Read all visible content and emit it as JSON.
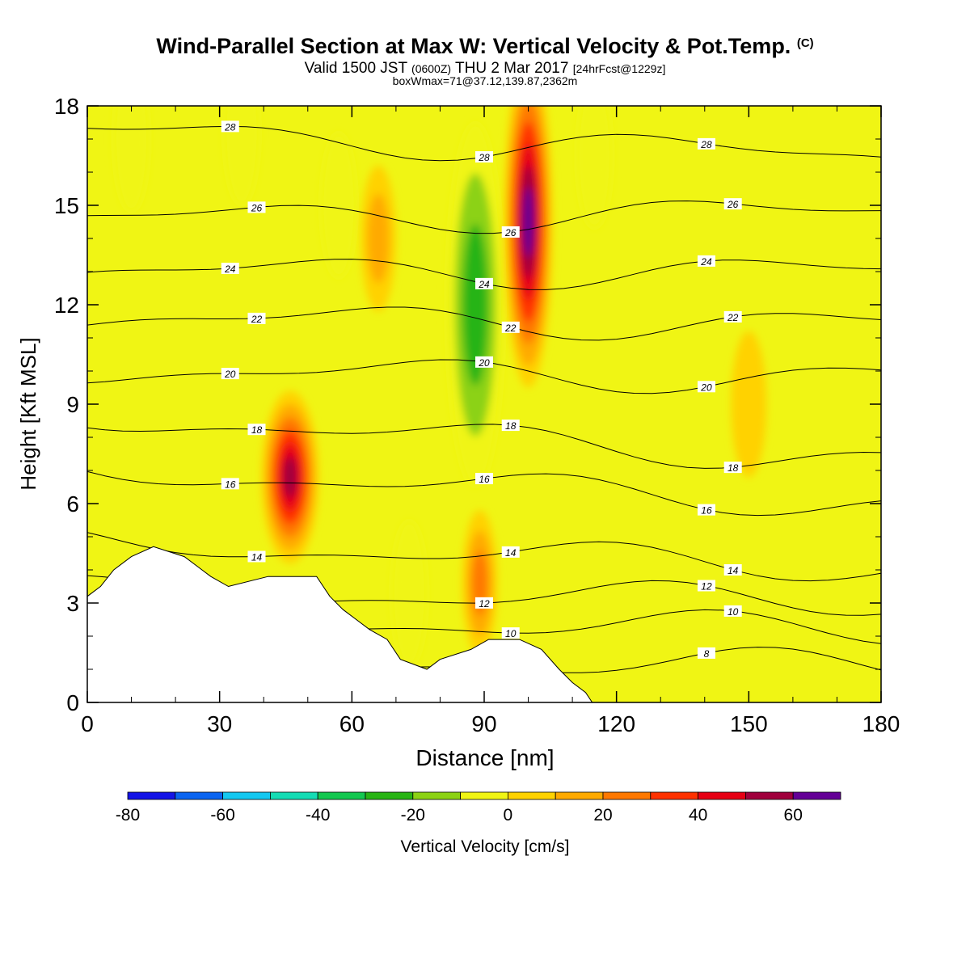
{
  "title": {
    "main": "Wind-Parallel Section at Max W: Vertical Velocity & Pot.Temp.",
    "copyright": "(C)",
    "valid_prefix": "Valid 1500 JST",
    "utc": "(0600Z)",
    "date": "THU 2 Mar 2017",
    "forecast": "[24hrFcst@1229z]",
    "box_info": "boxWmax=71@37.12,139.87,2362m"
  },
  "chart_data": {
    "type": "heatmap",
    "subtype": "vertical cross-section: filled contours of vertical velocity with potential temperature line contours",
    "xlabel": "Distance [nm]",
    "ylabel": "Height [Kft MSL]",
    "xlim": [
      0,
      180
    ],
    "ylim": [
      0,
      18
    ],
    "x_ticks": [
      "0",
      "30",
      "60",
      "90",
      "120",
      "150",
      "180"
    ],
    "y_ticks": [
      "0",
      "3",
      "6",
      "9",
      "12",
      "15",
      "18"
    ],
    "colorbar": {
      "label": "Vertical Velocity [cm/s]",
      "ticks": [
        "-80",
        "-60",
        "-40",
        "-20",
        "0",
        "20",
        "40",
        "60"
      ],
      "levels": [
        -80,
        -70,
        -60,
        -50,
        -40,
        -30,
        -20,
        -10,
        0,
        10,
        20,
        30,
        40,
        50,
        60,
        70
      ],
      "colors": [
        "#1414e6",
        "#0a64f0",
        "#14c8f0",
        "#14dcb4",
        "#14c850",
        "#28b414",
        "#8cd214",
        "#f0f514",
        "#ffd200",
        "#ffaa00",
        "#ff7800",
        "#ff3200",
        "#e60014",
        "#a0003c",
        "#640096"
      ]
    },
    "background_color": "#f0f514",
    "w_regions": [
      {
        "kind": "updraft",
        "x_center": 46,
        "height_center": 6.8,
        "w_max": 60,
        "note": "lee-side updraft core 43-53 nm, 4-8.5 kft"
      },
      {
        "kind": "downdraft",
        "x_center": 88,
        "height_center": 12,
        "w_min": -30,
        "note": "deep downdraft column 80-95 nm, 8-18 kft"
      },
      {
        "kind": "updraft",
        "x_center": 100,
        "height_center": 14.5,
        "w_max": 71,
        "note": "strongest updraft column 96-104 nm, 9-18 kft"
      },
      {
        "kind": "updraft",
        "x_center": 89,
        "height_center": 3.6,
        "w_max": 30,
        "note": "low-level updraft over terrain"
      },
      {
        "kind": "downdraft",
        "x_center": 10,
        "height_center": 17,
        "w_min": -10,
        "note": "weak downdraft near top left"
      },
      {
        "kind": "downdraft",
        "x_center": 35,
        "height_center": 17.2,
        "w_min": -10,
        "note": "weak downdraft tongue"
      },
      {
        "kind": "downdraft",
        "x_center": 57,
        "height_center": 15,
        "w_min": -10,
        "note": "weak downdraft streak"
      },
      {
        "kind": "downdraft",
        "x_center": 115,
        "height_center": 16.5,
        "w_min": -10,
        "note": "weak downdraft near top right"
      },
      {
        "kind": "downdraft",
        "x_center": 73,
        "height_center": 3.3,
        "w_min": -10,
        "note": "weak low-level downdraft"
      },
      {
        "kind": "updraft",
        "x_center": 66,
        "height_center": 14,
        "w_max": 20,
        "note": "moderate updraft band"
      },
      {
        "kind": "updraft",
        "x_center": 150,
        "height_center": 9,
        "w_max": 10,
        "note": "broad weak updraft east side"
      }
    ],
    "theta_contours": [
      {
        "label": "8",
        "height_left": 1.3,
        "height_right": 1.1
      },
      {
        "label": "10",
        "height_left": 2.5,
        "height_right": 2.2
      },
      {
        "label": "12",
        "height_left": 3.3,
        "height_right": 3.1
      },
      {
        "label": "14",
        "height_left": 4.8,
        "height_right": 4.1
      },
      {
        "label": "16",
        "height_left": 7.0,
        "height_right": 6.0
      },
      {
        "label": "18",
        "height_left": 8.6,
        "height_right": 7.3
      },
      {
        "label": "20",
        "height_left": 10.0,
        "height_right": 9.8
      },
      {
        "label": "22",
        "height_left": 11.6,
        "height_right": 11.4
      },
      {
        "label": "24",
        "height_left": 13.0,
        "height_right": 13.0
      },
      {
        "label": "26",
        "height_left": 14.6,
        "height_right": 14.8
      },
      {
        "label": "28",
        "height_left": 17.2,
        "height_right": 16.5
      }
    ],
    "terrain": {
      "description": "stepped terrain profile (white, below ground)",
      "x": [
        0,
        3,
        6,
        10,
        15,
        22,
        25,
        28,
        32,
        41,
        52,
        55,
        58,
        61,
        64,
        68,
        71,
        77,
        80,
        87,
        91,
        98,
        103,
        107,
        110,
        113,
        114.5,
        180
      ],
      "height": [
        3.2,
        3.5,
        4.0,
        4.4,
        4.7,
        4.4,
        4.1,
        3.8,
        3.5,
        3.8,
        3.8,
        3.2,
        2.8,
        2.5,
        2.2,
        1.9,
        1.3,
        1.0,
        1.3,
        1.6,
        1.9,
        1.9,
        1.6,
        1.0,
        0.6,
        0.3,
        0.0,
        0.0
      ]
    }
  }
}
